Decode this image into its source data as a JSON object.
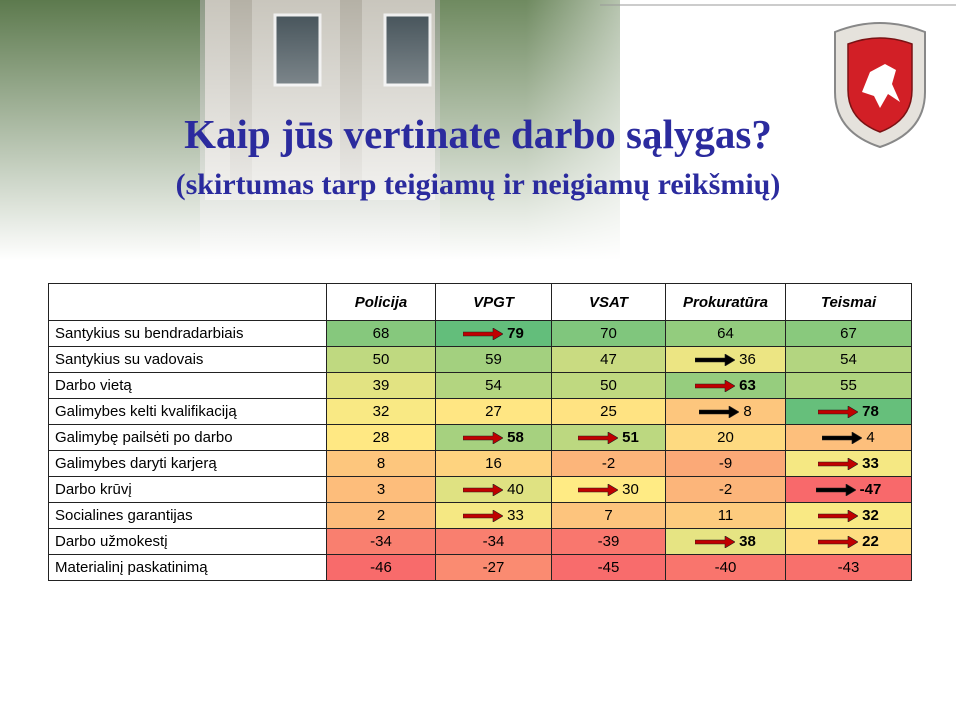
{
  "header": {
    "title": "Kaip jūs vertinate darbo sąlygas?",
    "subtitle": "(skirtumas tarp teigiamų ir neigiamų reikšmių)"
  },
  "table": {
    "columns": [
      "Policija",
      "VPGT",
      "VSAT",
      "Prokuratūra",
      "Teismai"
    ],
    "rows": [
      {
        "label": "Santykius su bendradarbiais",
        "values": [
          68,
          79,
          70,
          64,
          67
        ],
        "arrows": [
          null,
          "#c00000",
          null,
          null,
          null
        ],
        "bold": [
          false,
          true,
          false,
          false,
          false
        ]
      },
      {
        "label": "Santykius su vadovais",
        "values": [
          50,
          59,
          47,
          36,
          54
        ],
        "arrows": [
          null,
          null,
          null,
          "#000000",
          null
        ],
        "bold": [
          false,
          false,
          false,
          false,
          false
        ]
      },
      {
        "label": "Darbo vietą",
        "values": [
          39,
          54,
          50,
          63,
          55
        ],
        "arrows": [
          null,
          null,
          null,
          "#c00000",
          null
        ],
        "bold": [
          false,
          false,
          false,
          true,
          false
        ]
      },
      {
        "label": "Galimybes kelti kvalifikaciją",
        "values": [
          32,
          27,
          25,
          8,
          78
        ],
        "arrows": [
          null,
          null,
          null,
          "#000000",
          "#c00000"
        ],
        "bold": [
          false,
          false,
          false,
          false,
          true
        ]
      },
      {
        "label": "Galimybę pailsėti po darbo",
        "values": [
          28,
          58,
          51,
          20,
          4
        ],
        "arrows": [
          null,
          "#c00000",
          "#c00000",
          null,
          "#000000"
        ],
        "bold": [
          false,
          true,
          true,
          false,
          false
        ]
      },
      {
        "label": "Galimybes daryti karjerą",
        "values": [
          8,
          16,
          -2,
          -9,
          33
        ],
        "arrows": [
          null,
          null,
          null,
          null,
          "#c00000"
        ],
        "bold": [
          false,
          false,
          false,
          false,
          true
        ]
      },
      {
        "label": "Darbo krūvį",
        "values": [
          3,
          40,
          30,
          -2,
          -47
        ],
        "arrows": [
          null,
          "#c00000",
          "#c00000",
          null,
          "#000000"
        ],
        "bold": [
          false,
          false,
          false,
          false,
          true
        ]
      },
      {
        "label": "Socialines garantijas",
        "values": [
          2,
          33,
          7,
          11,
          32
        ],
        "arrows": [
          null,
          "#c00000",
          null,
          null,
          "#c00000"
        ],
        "bold": [
          false,
          false,
          false,
          false,
          true
        ]
      },
      {
        "label": "Darbo užmokestį",
        "values": [
          -34,
          -34,
          -39,
          38,
          22
        ],
        "arrows": [
          null,
          null,
          null,
          "#c00000",
          "#c00000"
        ],
        "bold": [
          false,
          false,
          false,
          true,
          true
        ]
      },
      {
        "label": "Materialinį paskatinimą",
        "values": [
          -46,
          -27,
          -45,
          -40,
          -43
        ],
        "arrows": [
          null,
          null,
          null,
          null,
          null
        ],
        "bold": [
          false,
          false,
          false,
          false,
          false
        ]
      }
    ]
  }
}
